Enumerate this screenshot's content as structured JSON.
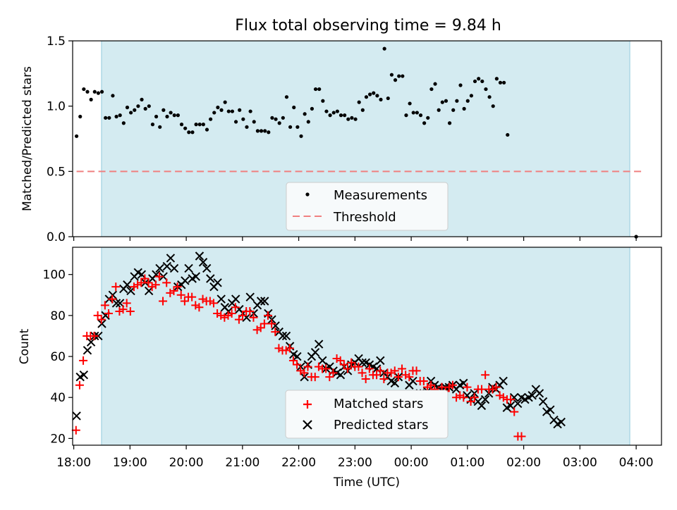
{
  "figure": {
    "title": "Flux total observing time = 9.84 h",
    "xlabel": "Time (UTC)"
  },
  "chart_data": [
    {
      "type": "scatter",
      "ylabel": "Matched/Predicted stars",
      "ylim": [
        0,
        1.5
      ],
      "yticks": [
        0.0,
        0.5,
        1.0,
        1.5
      ],
      "ytick_labels": [
        "0.0",
        "0.5",
        "1.0",
        "1.5"
      ],
      "xlim_hours": [
        17.98,
        28.45
      ],
      "shaded_span_hours": [
        18.05,
        27.87
      ],
      "threshold": 0.5,
      "legend": {
        "placement": "lower-center",
        "entries": [
          "Measurements",
          "Threshold"
        ]
      },
      "series": [
        {
          "name": "Measurements",
          "color": "#000000",
          "x_start_hour": 18.05,
          "x_step_hours": 0.0644,
          "values": [
            0.77,
            0.92,
            1.13,
            1.11,
            1.05,
            1.11,
            1.1,
            1.11,
            0.91,
            0.91,
            1.08,
            0.92,
            0.93,
            0.87,
            0.99,
            0.95,
            0.97,
            1.0,
            1.05,
            0.98,
            1.0,
            0.86,
            0.92,
            0.84,
            0.97,
            0.92,
            0.95,
            0.93,
            0.93,
            0.86,
            0.83,
            0.8,
            0.8,
            0.86,
            0.86,
            0.86,
            0.82,
            0.9,
            0.95,
            0.99,
            0.97,
            1.03,
            0.96,
            0.96,
            0.88,
            0.97,
            0.9,
            0.84,
            0.96,
            0.88,
            0.81,
            0.81,
            0.81,
            0.8,
            0.91,
            0.9,
            0.87,
            0.91,
            1.07,
            0.84,
            0.99,
            0.84,
            0.77,
            0.94,
            0.88,
            0.98,
            1.13,
            1.13,
            1.04,
            0.96,
            0.93,
            0.95,
            0.96,
            0.93,
            0.93,
            0.9,
            0.91,
            0.9,
            1.03,
            0.97,
            1.07,
            1.09,
            1.1,
            1.08,
            1.05,
            1.44,
            1.06,
            1.24,
            1.2,
            1.23,
            1.23,
            0.93,
            1.02,
            0.95,
            0.95,
            0.93,
            0.87,
            0.91,
            1.13,
            1.17,
            0.97,
            1.03,
            1.04,
            0.87,
            0.97,
            1.04,
            1.16,
            0.98,
            1.04,
            1.08,
            1.19,
            1.21,
            1.19,
            1.13,
            1.07,
            1.0,
            1.21,
            1.18,
            1.18,
            0.78
          ]
        },
        {
          "name": "Threshold",
          "color": "#f08080"
        },
        {
          "name": "",
          "color": "#000000",
          "points": [
            [
              28.0,
              0.0
            ]
          ]
        }
      ]
    },
    {
      "type": "scatter",
      "ylabel": "Count",
      "ylim": [
        16.7,
        113.3
      ],
      "yticks": [
        20,
        40,
        60,
        80,
        100
      ],
      "ytick_labels": [
        "20",
        "40",
        "60",
        "80",
        "100"
      ],
      "xlim_hours": [
        17.98,
        28.45
      ],
      "xticks_hours": [
        18,
        19,
        20,
        21,
        22,
        23,
        24,
        25,
        26,
        27,
        28
      ],
      "xtick_labels": [
        "18:00",
        "19:00",
        "20:00",
        "21:00",
        "22:00",
        "23:00",
        "00:00",
        "01:00",
        "02:00",
        "03:00",
        "04:00"
      ],
      "shaded_span_hours": [
        18.05,
        27.87
      ],
      "legend": {
        "placement": "lower-center",
        "entries": [
          "Matched stars",
          "Predicted stars"
        ]
      },
      "series": [
        {
          "name": "Matched stars",
          "color": "#ff0000",
          "x_start_hour": 18.04,
          "x_step_hours": 0.0644,
          "values": [
            24,
            46,
            58,
            70,
            70,
            70,
            80,
            78,
            85,
            81,
            88,
            94,
            82,
            83,
            86,
            82,
            94,
            95,
            96,
            98,
            96,
            94,
            95,
            99,
            87,
            96,
            91,
            92,
            94,
            90,
            87,
            89,
            89,
            85,
            84,
            88,
            87,
            87,
            86,
            81,
            80,
            79,
            80,
            81,
            84,
            78,
            80,
            82,
            82,
            79,
            73,
            74,
            76,
            80,
            76,
            72,
            64,
            63,
            63,
            64,
            58,
            56,
            53,
            52,
            55,
            50,
            50,
            55,
            54,
            54,
            50,
            52,
            59,
            58,
            56,
            54,
            57,
            55,
            55,
            52,
            49,
            54,
            51,
            51,
            53,
            49,
            52,
            52,
            53,
            50,
            54,
            51,
            50,
            53,
            53,
            48,
            48,
            45,
            46,
            44,
            42,
            45,
            43,
            45,
            46,
            40,
            41,
            40,
            45,
            38,
            40,
            44,
            44,
            51,
            44,
            44,
            45,
            41,
            40,
            39,
            39,
            33,
            21,
            21
          ]
        },
        {
          "name": "Predicted stars",
          "color": "#000000",
          "x_start_hour": 18.05,
          "x_step_hours": 0.0643,
          "values": [
            31,
            50,
            51,
            63,
            67,
            70,
            70,
            76,
            80,
            88,
            90,
            86,
            86,
            93,
            95,
            92,
            99,
            101,
            100,
            96,
            92,
            98,
            100,
            103,
            99,
            104,
            108,
            103,
            94,
            95,
            97,
            103,
            98,
            99,
            109,
            106,
            103,
            98,
            94,
            96,
            88,
            84,
            82,
            86,
            88,
            83,
            81,
            79,
            89,
            81,
            85,
            87,
            87,
            81,
            78,
            75,
            72,
            70,
            70,
            65,
            61,
            60,
            55,
            50,
            56,
            60,
            62,
            66,
            58,
            54,
            55,
            53,
            52,
            51,
            55,
            53,
            56,
            57,
            59,
            57,
            57,
            56,
            55,
            54,
            58,
            52,
            50,
            48,
            47,
            50,
            40,
            34,
            46,
            48,
            41,
            42,
            42,
            43,
            48,
            46,
            45,
            44,
            45,
            45,
            46,
            44,
            46,
            47,
            41,
            39,
            42,
            38,
            36,
            39,
            42,
            45,
            44,
            46,
            48,
            35,
            36,
            40,
            37,
            40,
            39,
            40,
            41,
            44,
            42,
            38,
            33,
            34,
            29,
            27,
            28
          ]
        }
      ]
    }
  ]
}
